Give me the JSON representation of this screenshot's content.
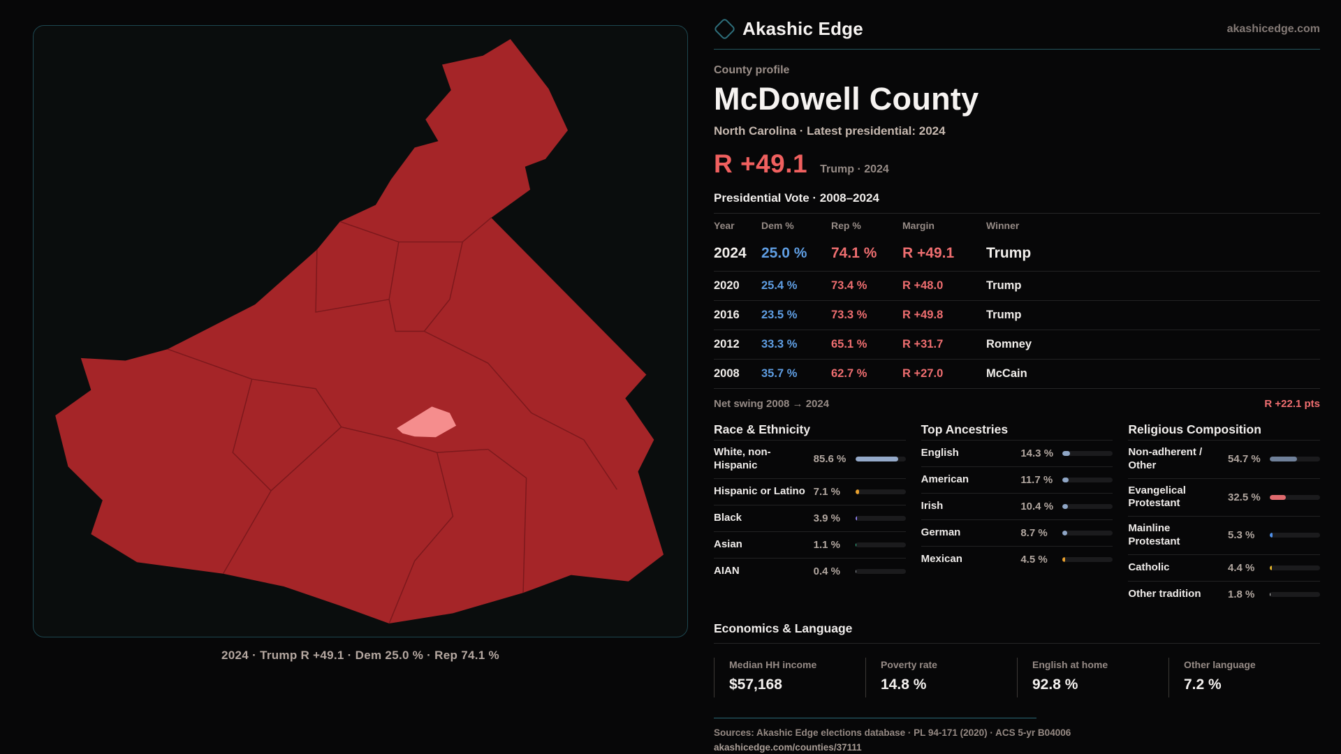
{
  "brand": {
    "name": "Akashic Edge",
    "domain": "akashicedge.com",
    "accent_teal": "#2e6f7c"
  },
  "profile": {
    "eyebrow": "County profile",
    "title": "McDowell County",
    "subtitle": "North Carolina · Latest presidential: 2024",
    "headline_margin": "R +49.1",
    "headline_context": "Trump · 2024"
  },
  "map": {
    "caption": "2024 · Trump R +49.1 · Dem 25.0 % · Rep 74.1 %",
    "county_fill": "#a52528",
    "precinct_line": "#7c181c",
    "highlight_fill": "#f58d8d"
  },
  "vote_table": {
    "title": "Presidential Vote · 2008–2024",
    "columns": [
      "Year",
      "Dem %",
      "Rep %",
      "Margin",
      "Winner"
    ],
    "rows": [
      {
        "year": "2024",
        "dem": "25.0 %",
        "rep": "74.1 %",
        "margin": "R +49.1",
        "winner": "Trump"
      },
      {
        "year": "2020",
        "dem": "25.4 %",
        "rep": "73.4 %",
        "margin": "R +48.0",
        "winner": "Trump"
      },
      {
        "year": "2016",
        "dem": "23.5 %",
        "rep": "73.3 %",
        "margin": "R +49.8",
        "winner": "Trump"
      },
      {
        "year": "2012",
        "dem": "33.3 %",
        "rep": "65.1 %",
        "margin": "R +31.7",
        "winner": "Romney"
      },
      {
        "year": "2008",
        "dem": "35.7 %",
        "rep": "62.7 %",
        "margin": "R +27.0",
        "winner": "McCain"
      }
    ],
    "dem_color": "#5f9ee3",
    "rep_color": "#ef6e70"
  },
  "net_swing": {
    "label": "Net swing 2008 → 2024",
    "value": "R +22.1 pts"
  },
  "race": {
    "title": "Race & Ethnicity",
    "rows": [
      {
        "label": "White, non-Hispanic",
        "value": "85.6 %",
        "pct": 85.6,
        "color": "#94a9c9"
      },
      {
        "label": "Hispanic or Latino",
        "value": "7.1 %",
        "pct": 7.1,
        "color": "#e8a02e"
      },
      {
        "label": "Black",
        "value": "3.9 %",
        "pct": 3.9,
        "color": "#8f7ff0"
      },
      {
        "label": "Asian",
        "value": "1.1 %",
        "pct": 1.1,
        "color": "#3acf9e"
      },
      {
        "label": "AIAN",
        "value": "0.4 %",
        "pct": 0.4,
        "color": "#9aa0a8"
      }
    ]
  },
  "ancestries": {
    "title": "Top Ancestries",
    "rows": [
      {
        "label": "English",
        "value": "14.3 %",
        "pct": 14.3,
        "color": "#8fa6c6"
      },
      {
        "label": "American",
        "value": "11.7 %",
        "pct": 11.7,
        "color": "#8fa6c6"
      },
      {
        "label": "Irish",
        "value": "10.4 %",
        "pct": 10.4,
        "color": "#8fa6c6"
      },
      {
        "label": "German",
        "value": "8.7 %",
        "pct": 8.7,
        "color": "#8fa6c6"
      },
      {
        "label": "Mexican",
        "value": "4.5 %",
        "pct": 4.5,
        "color": "#e8a02e"
      }
    ]
  },
  "religion": {
    "title": "Religious Composition",
    "rows": [
      {
        "label": "Non-adherent / Other",
        "value": "54.7 %",
        "pct": 54.7,
        "color": "#6f8099"
      },
      {
        "label": "Evangelical Protestant",
        "value": "32.5 %",
        "pct": 32.5,
        "color": "#e06a6e"
      },
      {
        "label": "Mainline Protestant",
        "value": "5.3 %",
        "pct": 5.3,
        "color": "#4f8fe8"
      },
      {
        "label": "Catholic",
        "value": "4.4 %",
        "pct": 4.4,
        "color": "#e3b32a"
      },
      {
        "label": "Other tradition",
        "value": "1.8 %",
        "pct": 1.8,
        "color": "#d8d8d8"
      }
    ]
  },
  "economics": {
    "title": "Economics & Language",
    "stats": [
      {
        "label": "Median HH income",
        "value": "$57,168"
      },
      {
        "label": "Poverty rate",
        "value": "14.8 %"
      },
      {
        "label": "English at home",
        "value": "92.8 %"
      },
      {
        "label": "Other language",
        "value": "7.2 %"
      }
    ]
  },
  "footer": {
    "sources": "Sources: Akashic Edge elections database · PL 94-171 (2020) · ACS 5-yr B04006",
    "link": "akashicedge.com/counties/37111"
  }
}
